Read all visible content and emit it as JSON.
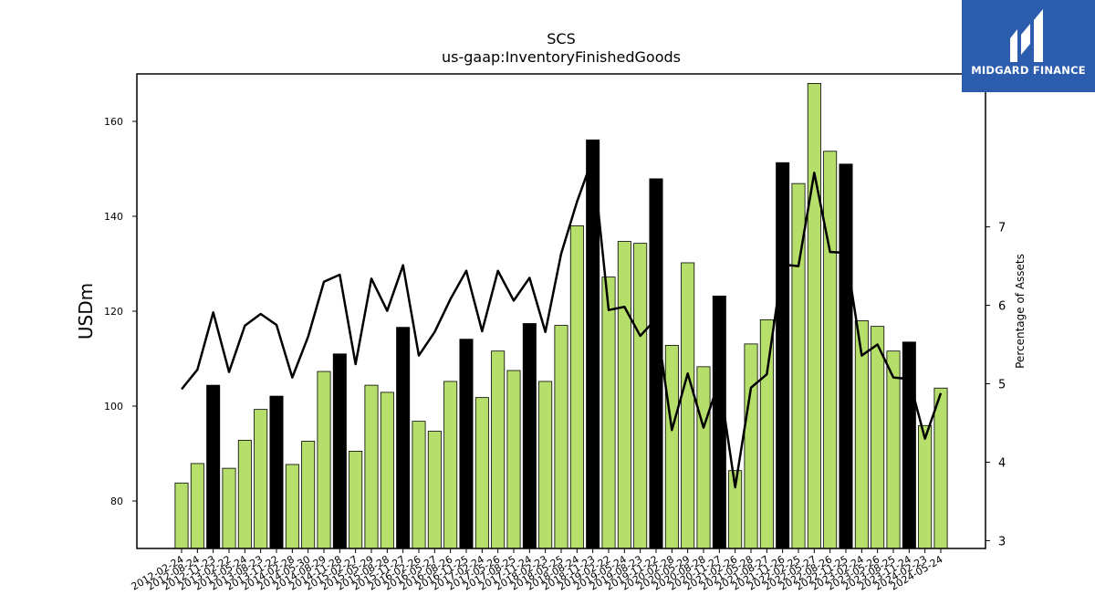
{
  "chart_data": {
    "type": "bar",
    "title": "SCS",
    "subtitle": "us-gaap:InventoryFinishedGoods",
    "ylabel": "USDm",
    "y2label": "Percentage of Assets",
    "ylim": [
      70,
      170
    ],
    "y2lim": [
      2.9,
      8.95
    ],
    "yticks": [
      80,
      100,
      120,
      140,
      160
    ],
    "y2ticks": [
      3,
      4,
      5,
      6,
      7
    ],
    "grid": false,
    "colors": {
      "bar": "#b5de6b",
      "highlight_bar": "#000000",
      "line": "#000000"
    },
    "categories": [
      "2012-02-24",
      "2012-08-24",
      "2012-11-23",
      "2013-02-22",
      "2013-05-24",
      "2013-08-23",
      "2013-11-22",
      "2014-02-28",
      "2014-05-30",
      "2014-08-29",
      "2014-11-28",
      "2015-02-27",
      "2015-05-29",
      "2015-08-28",
      "2015-11-27",
      "2016-02-26",
      "2016-05-27",
      "2016-08-26",
      "2016-11-25",
      "2017-02-24",
      "2017-05-26",
      "2017-08-25",
      "2017-11-24",
      "2018-02-23",
      "2018-05-25",
      "2018-08-24",
      "2018-11-23",
      "2019-02-22",
      "2019-05-24",
      "2019-08-23",
      "2019-11-22",
      "2020-02-28",
      "2020-05-29",
      "2020-08-28",
      "2020-11-27",
      "2021-02-26",
      "2021-05-28",
      "2021-08-27",
      "2021-11-26",
      "2022-02-25",
      "2022-05-27",
      "2022-08-26",
      "2022-11-25",
      "2023-02-24",
      "2023-05-26",
      "2023-08-25",
      "2023-11-24",
      "2024-02-23",
      "2024-05-24"
    ],
    "values": [
      83.8,
      87.9,
      104.4,
      86.9,
      92.8,
      99.3,
      102.1,
      87.7,
      92.6,
      107.3,
      111.0,
      90.5,
      104.4,
      102.9,
      116.6,
      96.8,
      94.7,
      105.2,
      114.1,
      101.8,
      111.6,
      107.5,
      117.4,
      105.2,
      117.0,
      138.0,
      156.1,
      127.2,
      134.7,
      134.3,
      147.9,
      112.8,
      130.2,
      108.3,
      123.2,
      86.4,
      113.1,
      118.2,
      151.3,
      146.9,
      168.0,
      153.7,
      151.0,
      118.0,
      116.8,
      111.6,
      113.5,
      95.9,
      103.8
    ],
    "highlight": [
      false,
      false,
      true,
      false,
      false,
      false,
      true,
      false,
      false,
      false,
      true,
      false,
      false,
      false,
      true,
      false,
      false,
      false,
      true,
      false,
      false,
      false,
      true,
      false,
      false,
      false,
      true,
      false,
      false,
      false,
      true,
      false,
      false,
      false,
      true,
      false,
      false,
      false,
      true,
      false,
      false,
      false,
      true,
      false,
      false,
      false,
      true,
      false,
      false
    ],
    "line_values": [
      4.93,
      5.18,
      5.91,
      5.15,
      5.74,
      5.89,
      5.75,
      5.08,
      5.6,
      6.3,
      6.39,
      5.25,
      6.34,
      5.93,
      6.51,
      5.36,
      5.66,
      6.08,
      6.44,
      5.67,
      6.44,
      6.06,
      6.35,
      5.66,
      6.66,
      7.32,
      7.88,
      5.94,
      5.98,
      5.61,
      5.83,
      4.41,
      5.13,
      4.44,
      5.04,
      3.68,
      4.95,
      5.12,
      6.52,
      6.5,
      7.69,
      6.68,
      6.67,
      5.36,
      5.5,
      5.08,
      5.06,
      4.3,
      4.88
    ]
  },
  "logo": {
    "text": "MIDGARD FINANCE"
  }
}
